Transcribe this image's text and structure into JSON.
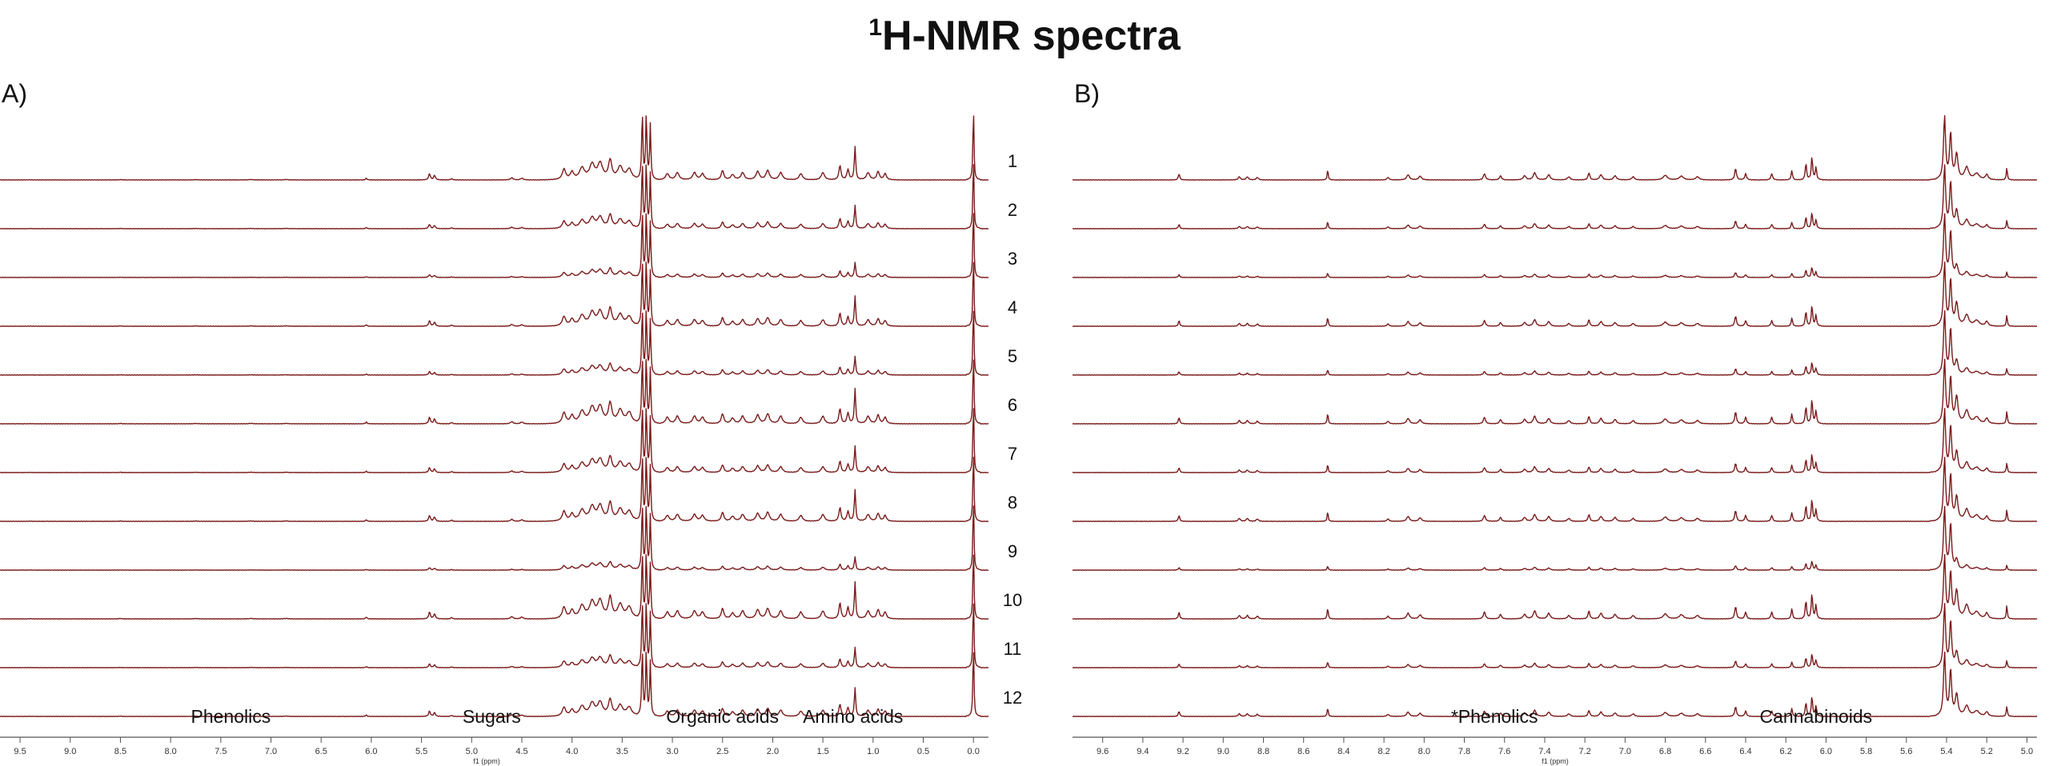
{
  "title": "1H-NMR spectra",
  "title_parts": {
    "sup": "1",
    "main": "H-NMR spectra"
  },
  "chart_data": [
    {
      "type": "line",
      "panel_label": "A)",
      "xlabel": "f1 (ppm)",
      "xlim": [
        9.7,
        -0.15
      ],
      "x_reversed": true,
      "grid": false,
      "x_ticks": [
        "9.5",
        "9.0",
        "8.5",
        "8.0",
        "7.5",
        "7.0",
        "6.5",
        "6.0",
        "5.5",
        "5.0",
        "4.5",
        "4.0",
        "3.5",
        "3.0",
        "2.5",
        "2.0",
        "1.5",
        "1.0",
        "0.5",
        "0.0"
      ],
      "series_labels": [
        "1",
        "2",
        "3",
        "4",
        "5",
        "6",
        "7",
        "8",
        "9",
        "10",
        "11",
        "12"
      ],
      "region_labels": [
        {
          "text": "Phenolics",
          "at_ppm": 7.4
        },
        {
          "text": "Sugars",
          "at_ppm": 4.8
        },
        {
          "text": "Organic acids",
          "at_ppm": 2.5
        },
        {
          "text": "Amino acids",
          "at_ppm": 1.2
        }
      ],
      "peaks": [
        {
          "ppm": 9.4,
          "h": 0.01,
          "w": 0.01
        },
        {
          "ppm": 8.5,
          "h": 0.02,
          "w": 0.01
        },
        {
          "ppm": 7.75,
          "h": 0.015,
          "w": 0.02
        },
        {
          "ppm": 7.2,
          "h": 0.02,
          "w": 0.02
        },
        {
          "ppm": 6.85,
          "h": 0.02,
          "w": 0.02
        },
        {
          "ppm": 6.05,
          "h": 0.08,
          "w": 0.008
        },
        {
          "ppm": 5.42,
          "h": 0.3,
          "w": 0.01
        },
        {
          "ppm": 5.37,
          "h": 0.22,
          "w": 0.01
        },
        {
          "ppm": 5.2,
          "h": 0.06,
          "w": 0.01
        },
        {
          "ppm": 4.6,
          "h": 0.1,
          "w": 0.015
        },
        {
          "ppm": 4.5,
          "h": 0.08,
          "w": 0.015
        },
        {
          "ppm": 4.08,
          "h": 0.5,
          "w": 0.02
        },
        {
          "ppm": 4.0,
          "h": 0.35,
          "w": 0.02
        },
        {
          "ppm": 3.9,
          "h": 0.55,
          "w": 0.03
        },
        {
          "ppm": 3.8,
          "h": 0.7,
          "w": 0.03
        },
        {
          "ppm": 3.72,
          "h": 0.75,
          "w": 0.03
        },
        {
          "ppm": 3.62,
          "h": 0.9,
          "w": 0.02
        },
        {
          "ppm": 3.52,
          "h": 0.6,
          "w": 0.03
        },
        {
          "ppm": 3.43,
          "h": 0.5,
          "w": 0.03
        },
        {
          "ppm": 3.3,
          "h": 3.2,
          "w": 0.007
        },
        {
          "ppm": 3.26,
          "h": 3.2,
          "w": 0.007
        },
        {
          "ppm": 3.22,
          "h": 2.6,
          "w": 0.007
        },
        {
          "ppm": 3.05,
          "h": 0.3,
          "w": 0.02
        },
        {
          "ppm": 2.95,
          "h": 0.35,
          "w": 0.02
        },
        {
          "ppm": 2.78,
          "h": 0.35,
          "w": 0.02
        },
        {
          "ppm": 2.7,
          "h": 0.3,
          "w": 0.02
        },
        {
          "ppm": 2.5,
          "h": 0.45,
          "w": 0.015
        },
        {
          "ppm": 2.4,
          "h": 0.25,
          "w": 0.02
        },
        {
          "ppm": 2.3,
          "h": 0.35,
          "w": 0.02
        },
        {
          "ppm": 2.15,
          "h": 0.4,
          "w": 0.02
        },
        {
          "ppm": 2.05,
          "h": 0.45,
          "w": 0.02
        },
        {
          "ppm": 1.92,
          "h": 0.35,
          "w": 0.02
        },
        {
          "ppm": 1.72,
          "h": 0.3,
          "w": 0.02
        },
        {
          "ppm": 1.5,
          "h": 0.35,
          "w": 0.02
        },
        {
          "ppm": 1.33,
          "h": 0.7,
          "w": 0.012
        },
        {
          "ppm": 1.25,
          "h": 0.5,
          "w": 0.012
        },
        {
          "ppm": 1.18,
          "h": 1.6,
          "w": 0.008
        },
        {
          "ppm": 1.05,
          "h": 0.35,
          "w": 0.02
        },
        {
          "ppm": 0.95,
          "h": 0.4,
          "w": 0.015
        },
        {
          "ppm": 0.88,
          "h": 0.3,
          "w": 0.015
        },
        {
          "ppm": 0.0,
          "h": 3.5,
          "w": 0.006
        }
      ]
    },
    {
      "type": "line",
      "panel_label": "B)",
      "xlabel": "f1 (ppm)",
      "xlim": [
        9.75,
        4.95
      ],
      "x_reversed": true,
      "grid": false,
      "x_ticks": [
        "9.6",
        "9.4",
        "9.2",
        "9.0",
        "8.8",
        "8.6",
        "8.4",
        "8.2",
        "8.0",
        "7.8",
        "7.6",
        "7.4",
        "7.2",
        "7.0",
        "6.8",
        "6.6",
        "6.4",
        "6.2",
        "6.0",
        "5.8",
        "5.6",
        "5.4",
        "5.2",
        "5.0"
      ],
      "series_labels": [
        "1",
        "2",
        "3",
        "4",
        "5",
        "6",
        "7",
        "8",
        "9",
        "10",
        "11",
        "12"
      ],
      "region_labels": [
        {
          "text": "*Phenolics",
          "at_ppm": 7.65
        },
        {
          "text": "Cannabinoids",
          "at_ppm": 6.05
        }
      ],
      "peaks": [
        {
          "ppm": 9.22,
          "h": 0.3,
          "w": 0.004
        },
        {
          "ppm": 8.92,
          "h": 0.15,
          "w": 0.006
        },
        {
          "ppm": 8.88,
          "h": 0.15,
          "w": 0.006
        },
        {
          "ppm": 8.83,
          "h": 0.12,
          "w": 0.006
        },
        {
          "ppm": 8.48,
          "h": 0.5,
          "w": 0.003
        },
        {
          "ppm": 8.18,
          "h": 0.12,
          "w": 0.006
        },
        {
          "ppm": 8.08,
          "h": 0.25,
          "w": 0.008
        },
        {
          "ppm": 8.02,
          "h": 0.18,
          "w": 0.008
        },
        {
          "ppm": 7.7,
          "h": 0.3,
          "w": 0.006
        },
        {
          "ppm": 7.62,
          "h": 0.2,
          "w": 0.006
        },
        {
          "ppm": 7.5,
          "h": 0.2,
          "w": 0.008
        },
        {
          "ppm": 7.45,
          "h": 0.35,
          "w": 0.008
        },
        {
          "ppm": 7.38,
          "h": 0.25,
          "w": 0.008
        },
        {
          "ppm": 7.28,
          "h": 0.15,
          "w": 0.008
        },
        {
          "ppm": 7.18,
          "h": 0.35,
          "w": 0.005
        },
        {
          "ppm": 7.12,
          "h": 0.25,
          "w": 0.008
        },
        {
          "ppm": 7.05,
          "h": 0.2,
          "w": 0.008
        },
        {
          "ppm": 6.96,
          "h": 0.15,
          "w": 0.008
        },
        {
          "ppm": 6.8,
          "h": 0.22,
          "w": 0.012
        },
        {
          "ppm": 6.72,
          "h": 0.18,
          "w": 0.012
        },
        {
          "ppm": 6.64,
          "h": 0.15,
          "w": 0.01
        },
        {
          "ppm": 6.45,
          "h": 0.55,
          "w": 0.005
        },
        {
          "ppm": 6.4,
          "h": 0.3,
          "w": 0.005
        },
        {
          "ppm": 6.27,
          "h": 0.3,
          "w": 0.005
        },
        {
          "ppm": 6.17,
          "h": 0.45,
          "w": 0.004
        },
        {
          "ppm": 6.1,
          "h": 0.8,
          "w": 0.004
        },
        {
          "ppm": 6.07,
          "h": 1.1,
          "w": 0.004
        },
        {
          "ppm": 6.05,
          "h": 0.6,
          "w": 0.004
        },
        {
          "ppm": 5.41,
          "h": 3.0,
          "w": 0.006
        },
        {
          "ppm": 5.38,
          "h": 2.2,
          "w": 0.006
        },
        {
          "ppm": 5.35,
          "h": 1.2,
          "w": 0.008
        },
        {
          "ppm": 5.3,
          "h": 0.6,
          "w": 0.012
        },
        {
          "ppm": 5.25,
          "h": 0.3,
          "w": 0.015
        },
        {
          "ppm": 5.2,
          "h": 0.25,
          "w": 0.008
        },
        {
          "ppm": 5.1,
          "h": 0.6,
          "w": 0.003
        }
      ]
    }
  ]
}
